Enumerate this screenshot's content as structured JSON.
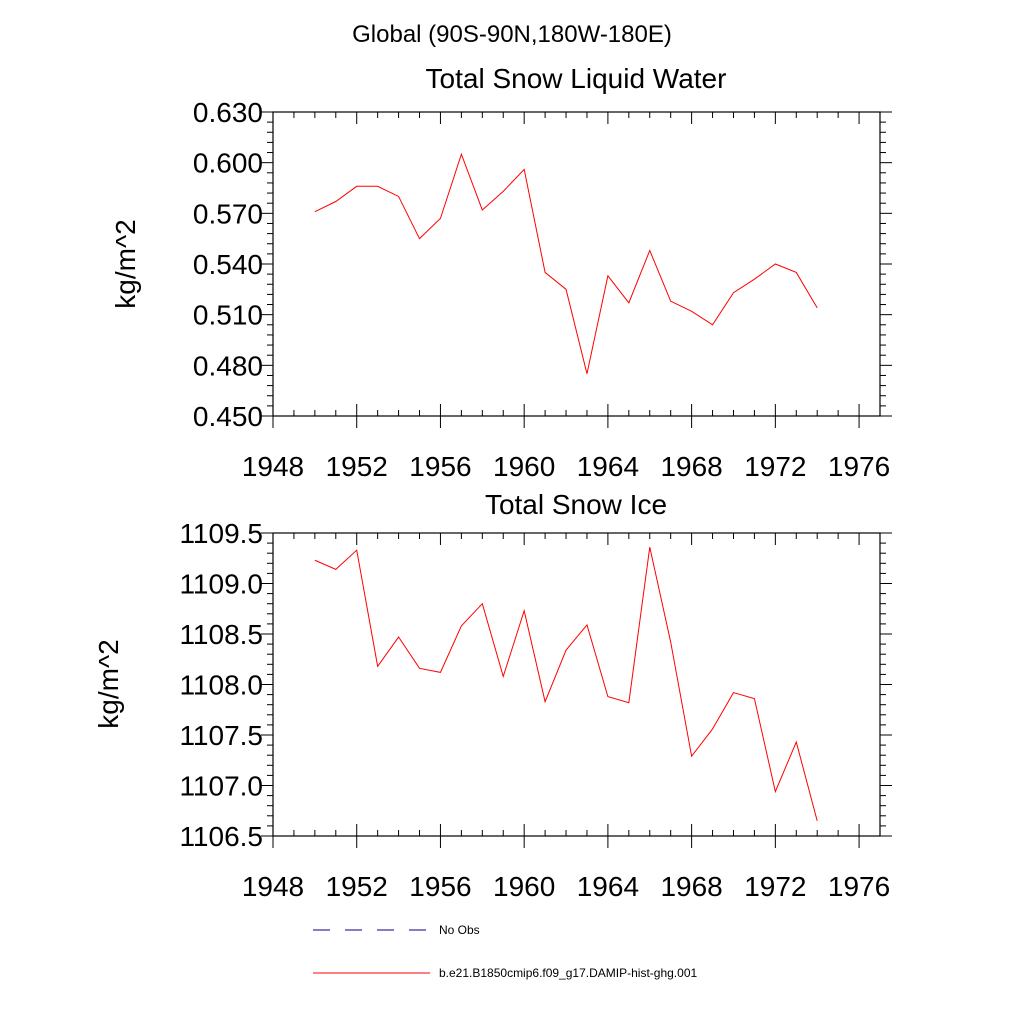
{
  "figure_title": "Global (90S-90N,180W-180E)",
  "legend": {
    "entries": [
      {
        "label": "No Obs",
        "color": "#000080",
        "style": "dashed"
      },
      {
        "label": "b.e21.B1850cmip6.f09_g17.DAMIP-hist-ghg.001",
        "color": "#ff0000",
        "style": "solid"
      }
    ]
  },
  "chart_data": [
    {
      "type": "line",
      "title": "Total Snow Liquid Water",
      "ylabel": "kg/m^2",
      "xlim": [
        1948,
        1977
      ],
      "ylim": [
        0.45,
        0.63
      ],
      "xticks": [
        "1948",
        "1952",
        "1956",
        "1960",
        "1964",
        "1968",
        "1972",
        "1976"
      ],
      "yticks": [
        "0.450",
        "0.480",
        "0.510",
        "0.540",
        "0.570",
        "0.600",
        "0.630"
      ],
      "x": [
        1950,
        1951,
        1952,
        1953,
        1954,
        1955,
        1956,
        1957,
        1958,
        1959,
        1960,
        1961,
        1962,
        1963,
        1964,
        1965,
        1966,
        1967,
        1968,
        1969,
        1970,
        1971,
        1972,
        1973,
        1974
      ],
      "series": [
        {
          "color": "#ff0000",
          "values": [
            0.571,
            0.577,
            0.586,
            0.586,
            0.58,
            0.555,
            0.567,
            0.605,
            0.572,
            0.583,
            0.596,
            0.535,
            0.525,
            0.475,
            0.533,
            0.517,
            0.548,
            0.518,
            0.512,
            0.504,
            0.523,
            0.531,
            0.54,
            0.535,
            0.514
          ]
        }
      ]
    },
    {
      "type": "line",
      "title": "Total Snow Ice",
      "ylabel": "kg/m^2",
      "xlim": [
        1948,
        1977
      ],
      "ylim": [
        1106.5,
        1109.5
      ],
      "xticks": [
        "1948",
        "1952",
        "1956",
        "1960",
        "1964",
        "1968",
        "1972",
        "1976"
      ],
      "yticks": [
        "1106.5",
        "1107.0",
        "1107.5",
        "1108.0",
        "1108.5",
        "1109.0",
        "1109.5"
      ],
      "x": [
        1950,
        1951,
        1952,
        1953,
        1954,
        1955,
        1956,
        1957,
        1958,
        1959,
        1960,
        1961,
        1962,
        1963,
        1964,
        1965,
        1966,
        1967,
        1968,
        1969,
        1970,
        1971,
        1972,
        1973,
        1974
      ],
      "series": [
        {
          "color": "#ff0000",
          "values": [
            1109.23,
            1109.14,
            1109.33,
            1108.18,
            1108.47,
            1108.16,
            1108.12,
            1108.58,
            1108.8,
            1108.08,
            1108.73,
            1107.83,
            1108.34,
            1108.59,
            1107.88,
            1107.82,
            1109.36,
            1108.42,
            1107.29,
            1107.56,
            1107.92,
            1107.86,
            1106.94,
            1107.43,
            1106.65
          ]
        }
      ]
    }
  ]
}
